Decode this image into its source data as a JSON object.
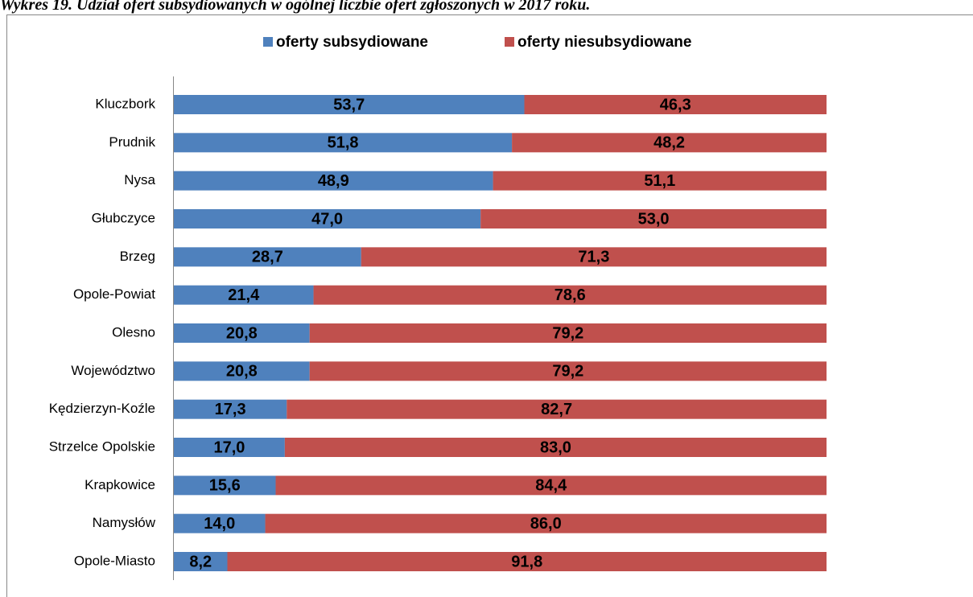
{
  "chart_data": {
    "type": "stacked_barh",
    "title": "Wykres 19. Udział ofert subsydiowanych w ogólnej liczbie ofert zgłoszonych w 2017 roku.",
    "categories": [
      "Kluczbork",
      "Prudnik",
      "Nysa",
      "Głubczyce",
      "Brzeg",
      "Opole-Powiat",
      "Olesno",
      "Województwo",
      "Kędzierzyn-Koźle",
      "Strzelce Opolskie",
      "Krapkowice",
      "Namysłów",
      "Opole-Miasto"
    ],
    "series": [
      {
        "name": "oferty subsydiowane",
        "color": "#4f81bd",
        "values": [
          53.7,
          51.8,
          48.9,
          47.0,
          28.7,
          21.4,
          20.8,
          20.8,
          17.3,
          17.0,
          15.6,
          14.0,
          8.2
        ],
        "value_labels": [
          "53,7",
          "51,8",
          "48,9",
          "47,0",
          "28,7",
          "21,4",
          "20,8",
          "20,8",
          "17,3",
          "17,0",
          "15,6",
          "14,0",
          "8,2"
        ]
      },
      {
        "name": "oferty niesubsydiowane",
        "color": "#c0504d",
        "values": [
          46.3,
          48.2,
          51.1,
          53.0,
          71.3,
          78.6,
          79.2,
          79.2,
          82.7,
          83.0,
          84.4,
          86.0,
          91.8
        ],
        "value_labels": [
          "46,3",
          "48,2",
          "51,1",
          "53,0",
          "71,3",
          "78,6",
          "79,2",
          "79,2",
          "82,7",
          "83,0",
          "84,4",
          "86,0",
          "91,8"
        ]
      }
    ],
    "xlim": [
      0,
      100
    ],
    "legend": "top"
  }
}
